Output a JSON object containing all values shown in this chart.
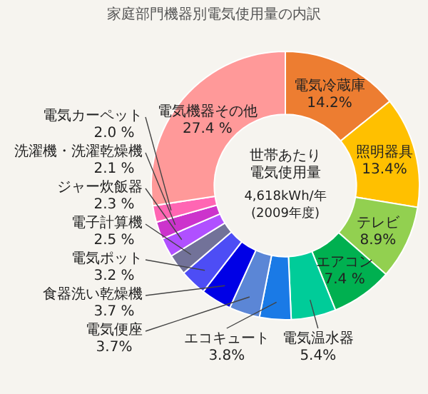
{
  "chart_data": {
    "type": "donut",
    "title": "家庭部門機器別電気使用量の内訳",
    "categories": [
      "電気冷蔵庫",
      "照明器具",
      "テレビ",
      "エアコン",
      "電気温水器",
      "エコキュート",
      "電気便座",
      "食器洗い乾燥機",
      "電気ポット",
      "電子計算機",
      "ジャー炊飯器",
      "洗濯機・洗濯乾燥機",
      "電気カーペット",
      "電気機器その他"
    ],
    "values": [
      14.2,
      13.4,
      8.9,
      7.4,
      5.4,
      3.8,
      3.7,
      3.7,
      3.2,
      2.5,
      2.3,
      2.1,
      2.0,
      27.4
    ],
    "colors": [
      "#ed7d31",
      "#ffc000",
      "#92d050",
      "#00b050",
      "#00cc99",
      "#1a7ae6",
      "#5b86d6",
      "#0000e6",
      "#4d4df5",
      "#727299",
      "#b050ff",
      "#cc33cc",
      "#ff66b3",
      "#ff9999"
    ],
    "value_labels": [
      "14.2%",
      "13.4%",
      "8.9%",
      "7.4 %",
      "5.4%",
      "3.8%",
      "3.7%",
      "3.7 %",
      "3.2 %",
      "2.5 %",
      "2.3 %",
      "2.1 %",
      "2.0 %",
      "27.4 %"
    ],
    "annotations": [
      "世帯あたり",
      "電気使用量",
      "4,618kWh/年",
      "(2009年度)"
    ]
  }
}
